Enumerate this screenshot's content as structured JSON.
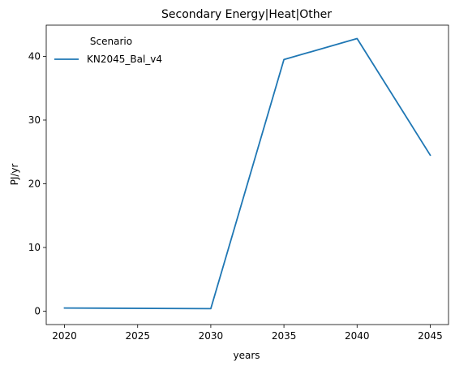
{
  "chart_data": {
    "type": "line",
    "title": "Secondary Energy|Heat|Other",
    "xlabel": "years",
    "ylabel": "PJ/yr",
    "x": [
      2020,
      2025,
      2030,
      2035,
      2040,
      2045
    ],
    "xticks": [
      2020,
      2025,
      2030,
      2035,
      2040,
      2045
    ],
    "yticks": [
      0,
      10,
      20,
      30,
      40
    ],
    "xlim": [
      2018.75,
      2046.25
    ],
    "ylim": [
      -2.1,
      44.9
    ],
    "grid": false,
    "legend": {
      "title": "Scenario",
      "placement": "top-left",
      "frame": false
    },
    "series": [
      {
        "name": "KN2045_Bal_v4",
        "color": "#1f77b4",
        "x": [
          2020,
          2030,
          2035,
          2040,
          2045
        ],
        "values": [
          0.5,
          0.4,
          39.5,
          42.8,
          24.5
        ]
      }
    ]
  }
}
